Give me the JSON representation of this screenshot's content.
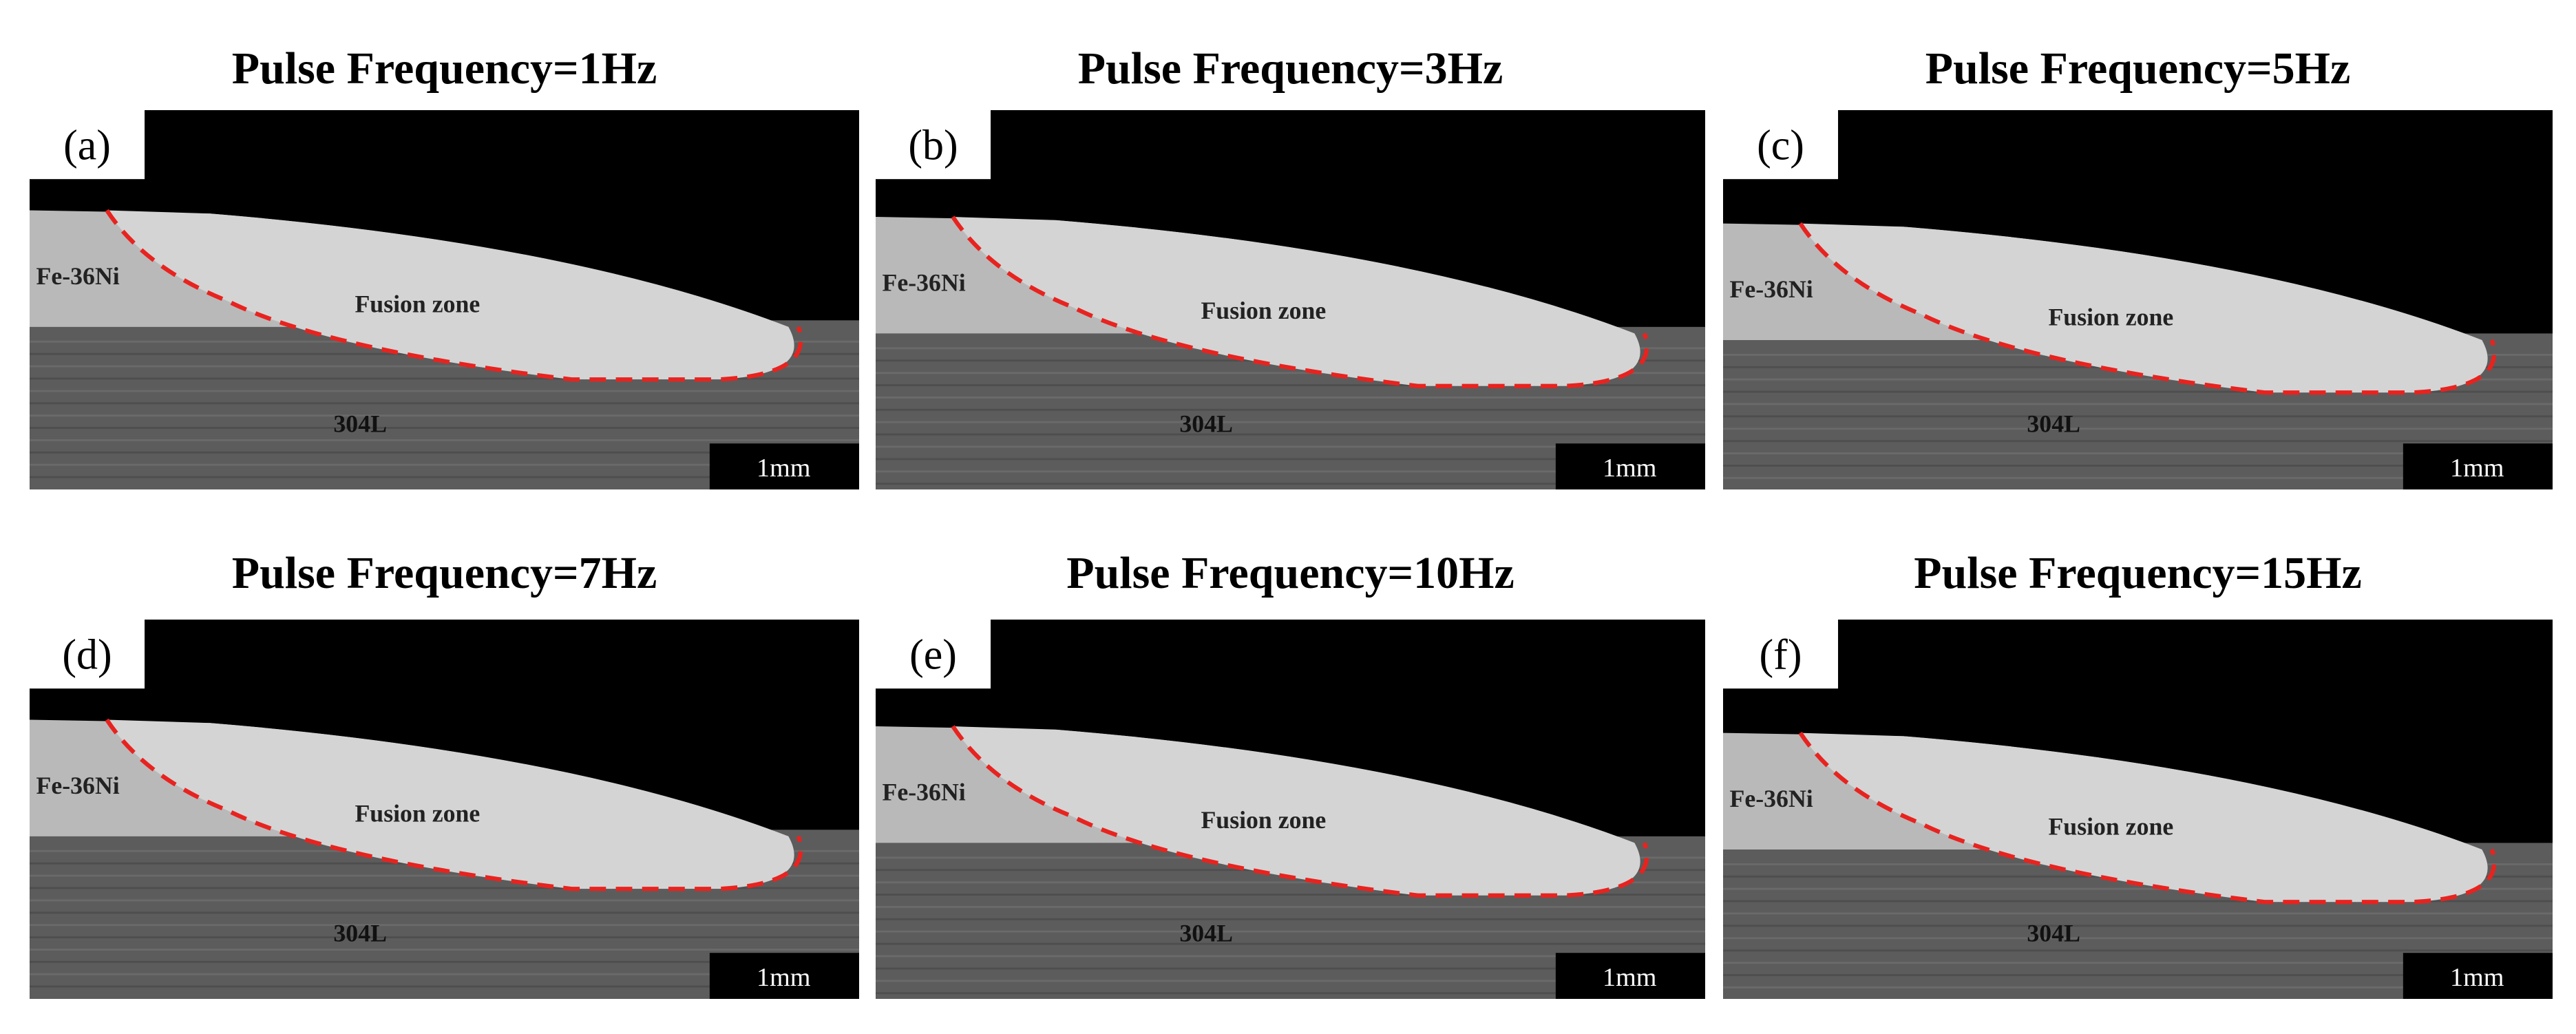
{
  "panels": [
    {
      "title": "Pulse Frequency=1Hz",
      "label": "(a)",
      "base_metal": "Fe-36Ni",
      "zone": "Fusion zone",
      "substrate": "304L",
      "scale_bar": "1mm"
    },
    {
      "title": "Pulse Frequency=3Hz",
      "label": "(b)",
      "base_metal": "Fe-36Ni",
      "zone": "Fusion zone",
      "substrate": "304L",
      "scale_bar": "1mm"
    },
    {
      "title": "Pulse Frequency=5Hz",
      "label": "(c)",
      "base_metal": "Fe-36Ni",
      "zone": "Fusion zone",
      "substrate": "304L",
      "scale_bar": "1mm"
    },
    {
      "title": "Pulse Frequency=7Hz",
      "label": "(d)",
      "base_metal": "Fe-36Ni",
      "zone": "Fusion zone",
      "substrate": "304L",
      "scale_bar": "1mm"
    },
    {
      "title": "Pulse Frequency=10Hz",
      "label": "(e)",
      "base_metal": "Fe-36Ni",
      "zone": "Fusion zone",
      "substrate": "304L",
      "scale_bar": "1mm"
    },
    {
      "title": "Pulse Frequency=15Hz",
      "label": "(f)",
      "base_metal": "Fe-36Ni",
      "zone": "Fusion zone",
      "substrate": "304L",
      "scale_bar": "1mm"
    }
  ]
}
